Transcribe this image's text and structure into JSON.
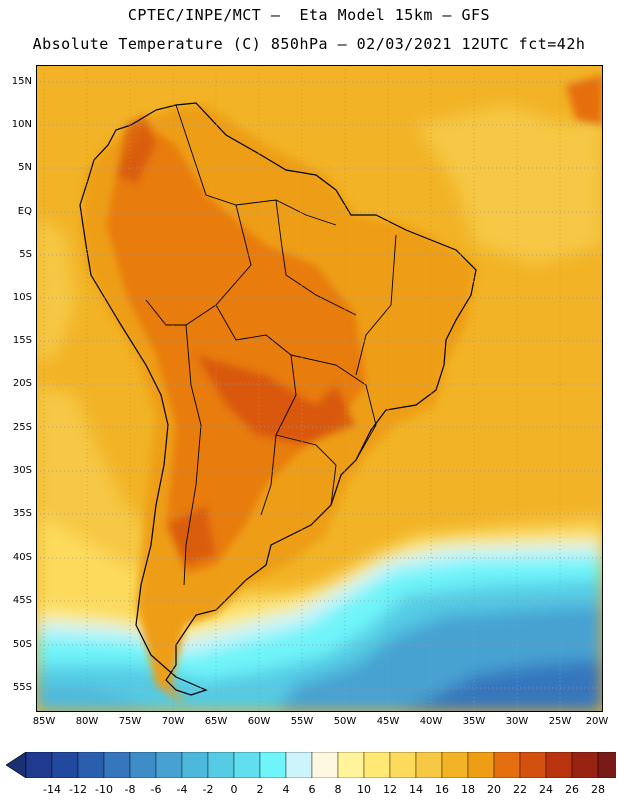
{
  "title": {
    "line1": "CPTEC/INPE/MCT –  Eta Model 15km – GFS",
    "line2": "Absolute Temperature (C) 850hPa – 02/03/2021 12UTC fct=42h"
  },
  "latitude_labels": [
    "15N",
    "10N",
    "5N",
    "EQ",
    "5S",
    "10S",
    "15S",
    "20S",
    "25S",
    "30S",
    "35S",
    "40S",
    "45S",
    "50S",
    "55S"
  ],
  "longitude_labels": [
    "85W",
    "80W",
    "75W",
    "70W",
    "65W",
    "60W",
    "55W",
    "50W",
    "45W",
    "40W",
    "35W",
    "30W",
    "25W",
    "20W"
  ],
  "colorbar": {
    "labels": [
      "-14",
      "-12",
      "-10",
      "-8",
      "-6",
      "-4",
      "-2",
      "0",
      "2",
      "4",
      "6",
      "8",
      "10",
      "12",
      "14",
      "16",
      "18",
      "20",
      "22",
      "24",
      "26",
      "28"
    ],
    "colors": [
      "#1f3a8f",
      "#21499e",
      "#2a5fae",
      "#3676bd",
      "#3f8dc8",
      "#47a2d2",
      "#4db8dc",
      "#55cbe4",
      "#62dfee",
      "#6ff4f9",
      "#ccf4fb",
      "#fff8e1",
      "#fff49a",
      "#ffe874",
      "#fcda5c",
      "#f6c844",
      "#f2b326",
      "#ee9e14",
      "#e56e0e",
      "#d4500e",
      "#b9340e",
      "#982312",
      "#7a1a16"
    ],
    "under_color": "#1b2f74",
    "over_color": "#8b0a2c"
  },
  "colors": {
    "ocean_warm": "#f2b326",
    "land": "#ee9e14",
    "hot_core": "#e56e0e",
    "coastline": "#000000"
  }
}
